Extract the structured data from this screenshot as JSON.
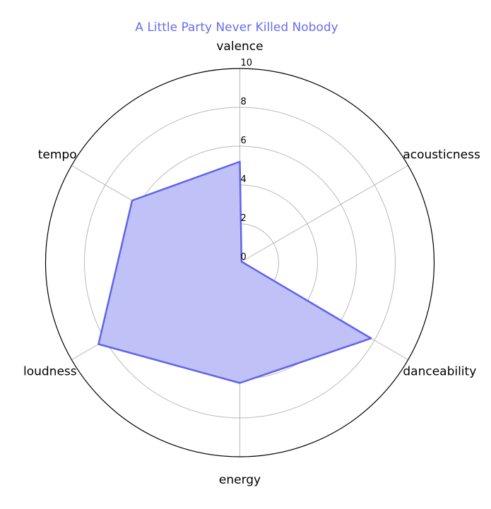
{
  "chart_data": {
    "type": "radar",
    "title": "A Little Party Never Killed Nobody",
    "axes": [
      "valence",
      "acousticness",
      "danceability",
      "energy",
      "loudness",
      "tempo"
    ],
    "series": [
      {
        "values": [
          5.2,
          0.1,
          7.8,
          6.2,
          8.4,
          6.4
        ]
      }
    ],
    "radial_ticks": [
      "0",
      "2",
      "4",
      "6",
      "8",
      "10"
    ],
    "rlim": [
      0,
      10
    ],
    "grid": true,
    "colors": {
      "title": "#6a6cee",
      "line": "#5f63ea",
      "fill": "#c0c1f7",
      "grid": "#b8b8b8",
      "outer_circle": "#000000"
    }
  }
}
